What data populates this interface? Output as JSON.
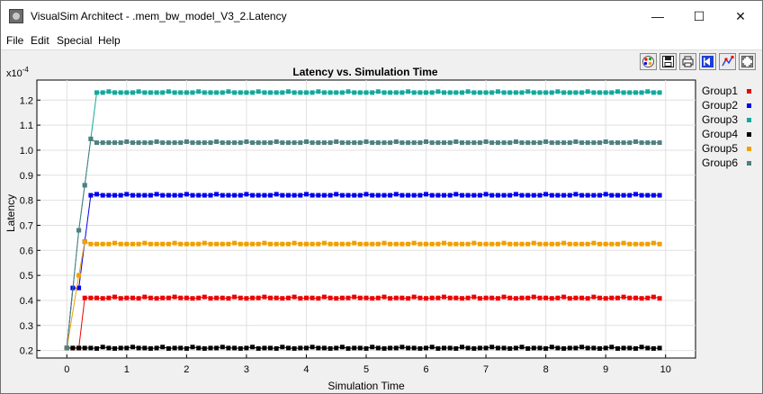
{
  "window": {
    "title": "VisualSim Architect - .mem_bw_model_V3_2.Latency",
    "minimize_glyph": "—",
    "maximize_glyph": "☐",
    "close_glyph": "✕"
  },
  "menu": [
    "File",
    "Edit",
    "Special",
    "Help"
  ],
  "toolbar": {
    "buttons": [
      "color-palette-icon",
      "save-icon",
      "print-icon",
      "reset-axes-icon",
      "edit-points-icon",
      "fit-zoom-icon"
    ]
  },
  "chart_data": {
    "type": "line",
    "title": "Latency vs. Simulation Time",
    "xlabel": "Simulation Time",
    "ylabel": "Latency",
    "y_multiplier": "x10",
    "y_multiplier_exp": "-4",
    "xlim": [
      -0.5,
      10.5
    ],
    "ylim": [
      0.17,
      1.28
    ],
    "xticks": [
      0,
      1,
      2,
      3,
      4,
      5,
      6,
      7,
      8,
      9,
      10
    ],
    "yticks": [
      0.2,
      0.3,
      0.4,
      0.5,
      0.6,
      0.7,
      0.8,
      0.9,
      1.0,
      1.1,
      1.2
    ],
    "ytick_labels": [
      "0.2",
      "0.3",
      "0.4",
      "0.5",
      "0.6",
      "0.7",
      "0.8",
      "0.9",
      "1.0",
      "1.1",
      "1.2"
    ],
    "grid": true,
    "legend_position": "right",
    "series": [
      {
        "name": "Group1",
        "color": "#ee0000",
        "x": [
          0,
          0.1,
          0.2,
          0.3
        ],
        "values": [
          0.21,
          0.21,
          0.21,
          0.41
        ],
        "plateau": 0.41,
        "start": 0.3
      },
      {
        "name": "Group2",
        "color": "#0000ee",
        "x": [
          0,
          0.1,
          0.2,
          0.3,
          0.4
        ],
        "values": [
          0.21,
          0.45,
          0.45,
          0.635,
          0.82
        ],
        "plateau": 0.82,
        "start": 0.4
      },
      {
        "name": "Group3",
        "color": "#14a89b",
        "x": [
          0,
          0.2,
          0.3,
          0.4,
          0.5
        ],
        "values": [
          0.21,
          0.68,
          0.86,
          1.045,
          1.23
        ],
        "plateau": 1.23,
        "start": 0.5
      },
      {
        "name": "Group4",
        "color": "#000000",
        "x": [
          0,
          0.1,
          0.2,
          0.3
        ],
        "values": [
          0.21,
          0.21,
          0.21,
          0.21
        ],
        "plateau": 0.21,
        "start": 0.3
      },
      {
        "name": "Group5",
        "color": "#f0a000",
        "x": [
          0,
          0.2,
          0.3,
          0.4
        ],
        "values": [
          0.21,
          0.5,
          0.635,
          0.625
        ],
        "plateau": 0.625,
        "start": 0.4
      },
      {
        "name": "Group6",
        "color": "#4e8080",
        "x": [
          0,
          0.2,
          0.3,
          0.4,
          0.5
        ],
        "values": [
          0.21,
          0.68,
          0.86,
          1.045,
          1.03
        ],
        "plateau": 1.03,
        "start": 0.5
      }
    ],
    "plateau_step": 0.1,
    "plateau_end": 9.9,
    "plateau_jitter": 0.004
  }
}
